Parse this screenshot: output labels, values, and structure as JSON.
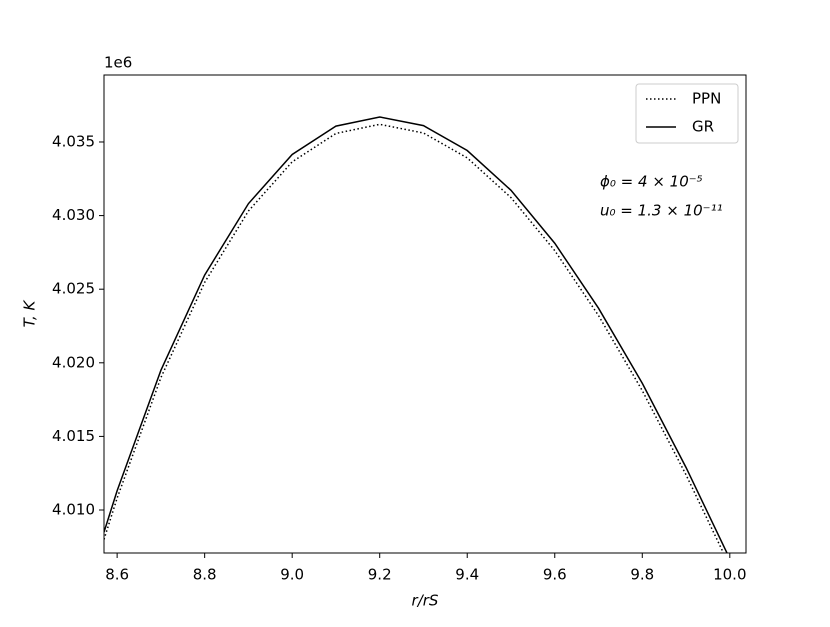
{
  "chart_data": {
    "type": "line",
    "xlabel": "r/rS",
    "ylabel": "T, K",
    "offset_label": "1e6",
    "x": [
      8.57,
      8.6,
      8.7,
      8.8,
      8.9,
      9.0,
      9.1,
      9.2,
      9.3,
      9.4,
      9.5,
      9.6,
      9.7,
      9.8,
      9.9,
      10.0
    ],
    "series": [
      {
        "name": "PPN",
        "color": "#000000",
        "style": "dotted",
        "values": [
          4.008,
          4.01081,
          4.01899,
          4.02546,
          4.03031,
          4.03365,
          4.03558,
          4.0362,
          4.03561,
          4.03392,
          4.03122,
          4.02762,
          4.02321,
          4.01811,
          4.01239,
          4.00618
        ]
      },
      {
        "name": "GR",
        "color": "#000000",
        "style": "solid",
        "values": [
          4.0085,
          4.01131,
          4.01949,
          4.02596,
          4.03081,
          4.03415,
          4.03608,
          4.0367,
          4.03611,
          4.03442,
          4.03172,
          4.02812,
          4.02371,
          4.01861,
          4.01289,
          4.00668
        ]
      }
    ],
    "annotations": [
      "ϕ₀ = 4 × 10⁻⁵",
      "u₀ = 1.3 × 10⁻¹¹"
    ],
    "xlim": [
      8.57,
      10.037
    ],
    "ylim": [
      4.00708,
      4.03955
    ],
    "xticks": [
      8.6,
      8.8,
      {
        "value": 9.0,
        "label": "9.0"
      },
      9.2,
      9.4,
      9.6,
      9.8,
      {
        "value": 10.0,
        "label": "10.0"
      }
    ],
    "yticks": [
      {
        "value": 4.01,
        "label": "4.010"
      },
      4.015,
      {
        "value": 4.02,
        "label": "4.020"
      },
      4.025,
      {
        "value": 4.03,
        "label": "4.030"
      },
      4.035
    ],
    "legend": "upper right"
  }
}
